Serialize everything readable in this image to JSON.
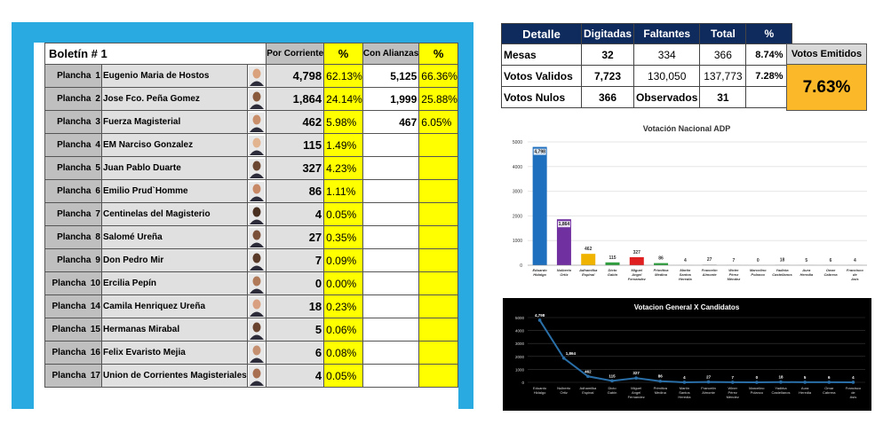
{
  "bulletin": {
    "title": "Boletín #  1",
    "col_por_corriente": "Por Corriente",
    "col_pct": "%",
    "col_con_alianzas": "Con Alianzas",
    "col_pct2": "%",
    "rows": [
      {
        "plancha": "Plancha",
        "num": "1",
        "name": "Eugenio Maria de Hostos",
        "votes": "4,798",
        "pct": "62.13%",
        "alliance": "5,125",
        "apct": "66.36%"
      },
      {
        "plancha": "Plancha",
        "num": "2",
        "name": "Jose Fco. Peña Gomez",
        "votes": "1,864",
        "pct": "24.14%",
        "alliance": "1,999",
        "apct": "25.88%"
      },
      {
        "plancha": "Plancha",
        "num": "3",
        "name": "Fuerza Magisterial",
        "votes": "462",
        "pct": "5.98%",
        "alliance": "467",
        "apct": "6.05%"
      },
      {
        "plancha": "Plancha",
        "num": "4",
        "name": "EM Narciso Gonzalez",
        "votes": "115",
        "pct": "1.49%",
        "alliance": "",
        "apct": ""
      },
      {
        "plancha": "Plancha",
        "num": "5",
        "name": "Juan Pablo Duarte",
        "votes": "327",
        "pct": "4.23%",
        "alliance": "",
        "apct": ""
      },
      {
        "plancha": "Plancha",
        "num": "6",
        "name": "Emilio Prud`Homme",
        "votes": "86",
        "pct": "1.11%",
        "alliance": "",
        "apct": ""
      },
      {
        "plancha": "Plancha",
        "num": "7",
        "name": "Centinelas del Magisterio",
        "votes": "4",
        "pct": "0.05%",
        "alliance": "",
        "apct": ""
      },
      {
        "plancha": "Plancha",
        "num": "8",
        "name": "Salomé Ureña",
        "votes": "27",
        "pct": "0.35%",
        "alliance": "",
        "apct": ""
      },
      {
        "plancha": "Plancha",
        "num": "9",
        "name": "Don Pedro Mir",
        "votes": "7",
        "pct": "0.09%",
        "alliance": "",
        "apct": ""
      },
      {
        "plancha": "Plancha",
        "num": "10",
        "name": "Ercilia Pepín",
        "votes": "0",
        "pct": "0.00%",
        "alliance": "",
        "apct": ""
      },
      {
        "plancha": "Plancha",
        "num": "14",
        "name": "Camila Henriquez Ureña",
        "votes": "18",
        "pct": "0.23%",
        "alliance": "",
        "apct": ""
      },
      {
        "plancha": "Plancha",
        "num": "15",
        "name": "Hermanas Mirabal",
        "votes": "5",
        "pct": "0.06%",
        "alliance": "",
        "apct": ""
      },
      {
        "plancha": "Plancha",
        "num": "16",
        "name": "Felix Evaristo Mejia",
        "votes": "6",
        "pct": "0.08%",
        "alliance": "",
        "apct": ""
      },
      {
        "plancha": "Plancha",
        "num": "17",
        "name": "Union de  Corrientes Magisteriales",
        "votes": "4",
        "pct": "0.05%",
        "alliance": "",
        "apct": ""
      }
    ]
  },
  "detail": {
    "headers": [
      "Detalle",
      "Digitadas",
      "Faltantes",
      "Total",
      "%"
    ],
    "rows": [
      [
        "Mesas",
        "32",
        "334",
        "366",
        "8.74%"
      ],
      [
        "Votos Validos",
        "7,723",
        "130,050",
        "137,773",
        "7.28%"
      ],
      [
        "Votos Nulos",
        "366",
        "Observados",
        "31",
        ""
      ]
    ]
  },
  "votos_emitidos": {
    "label": "Votos Emitidos",
    "value": "7.63%"
  },
  "colors": {
    "board_bg": "#29abe2",
    "yellow": "#ffff00",
    "header_navy": "#0f2a5c",
    "orange": "#fbb829",
    "bar_colors": [
      "#1f6fbf",
      "#7030a0",
      "#f0b400",
      "#2e9e3e",
      "#e02020",
      "#2e9e3e",
      "#bfbfbf",
      "#bfbfbf",
      "#bfbfbf",
      "#bfbfbf",
      "#bfbfbf",
      "#bfbfbf",
      "#bfbfbf",
      "#bfbfbf"
    ],
    "line_color": "#2a6fa8"
  },
  "chart_data": [
    {
      "type": "bar",
      "title": "Votación Nacional ADP",
      "categories": [
        "Eduardo Hidalgo",
        "Nulberto Ortiz",
        "Adhamilka Espinal",
        "Dicto Gabin",
        "Miguel Angel Fernandez",
        "Primitiva Medina",
        "Martín Santos Heredia",
        "Francelín Almonte",
        "Wnter Pérez Méndez",
        "Marcelino Polanco",
        "Yadirka Castellanos",
        "Aura Heredia",
        "Omar Cabrera",
        "Francisco de Asis"
      ],
      "values": [
        4798,
        1864,
        462,
        115,
        327,
        86,
        4,
        27,
        7,
        0,
        18,
        5,
        6,
        4
      ],
      "ylim": [
        0,
        5000
      ],
      "yticks": [
        0,
        1000,
        2000,
        3000,
        4000,
        5000
      ],
      "grid": true
    },
    {
      "type": "line",
      "title": "Votacion General X Candidatos",
      "categories": [
        "Eduardo Hidalgo",
        "Nulberto Ortiz",
        "Adhamilka Espinal",
        "Dicto Gabin",
        "Miguel Angel Fernandez",
        "Primitiva Medina",
        "Martín Santos Heredia",
        "Francelín Almonte",
        "Winer Pérez Méndez",
        "Marcelino Polanco",
        "Yadirka Castellanos",
        "Aura Heredia",
        "Omar Cabrera",
        "Francisco de Asis"
      ],
      "values": [
        4798,
        1864,
        462,
        115,
        327,
        86,
        4,
        27,
        7,
        0,
        18,
        5,
        6,
        4
      ],
      "ylim": [
        0,
        5000
      ],
      "yticks": [
        0,
        1000,
        2000,
        3000,
        4000,
        5000
      ],
      "grid": true
    }
  ]
}
